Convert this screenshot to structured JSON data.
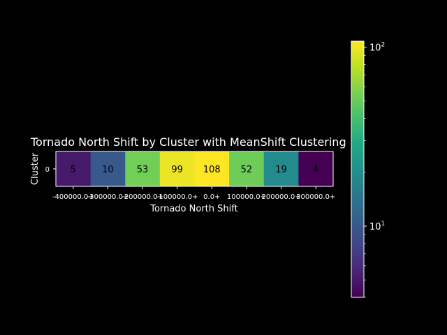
{
  "chart_data": {
    "type": "heatmap",
    "title": "Tornado North Shift by Cluster with MeanShift Clustering",
    "xlabel": "Tornado North Shift",
    "ylabel": "Cluster",
    "x_categories": [
      "-400000.0+",
      "-300000.0+",
      "-200000.0+",
      "-100000.0+",
      "0.0+",
      "100000.0+",
      "200000.0+",
      "300000.0+"
    ],
    "y_categories": [
      "0"
    ],
    "values": [
      [
        5,
        10,
        53,
        99,
        108,
        52,
        19,
        4
      ]
    ],
    "colorscale": "viridis",
    "color_scale_type": "log",
    "colorbar_range": [
      4,
      108
    ],
    "colorbar_ticks": [
      {
        "value": 10,
        "base": "10",
        "exp": "1"
      },
      {
        "value": 100,
        "base": "10",
        "exp": "2"
      }
    ]
  }
}
